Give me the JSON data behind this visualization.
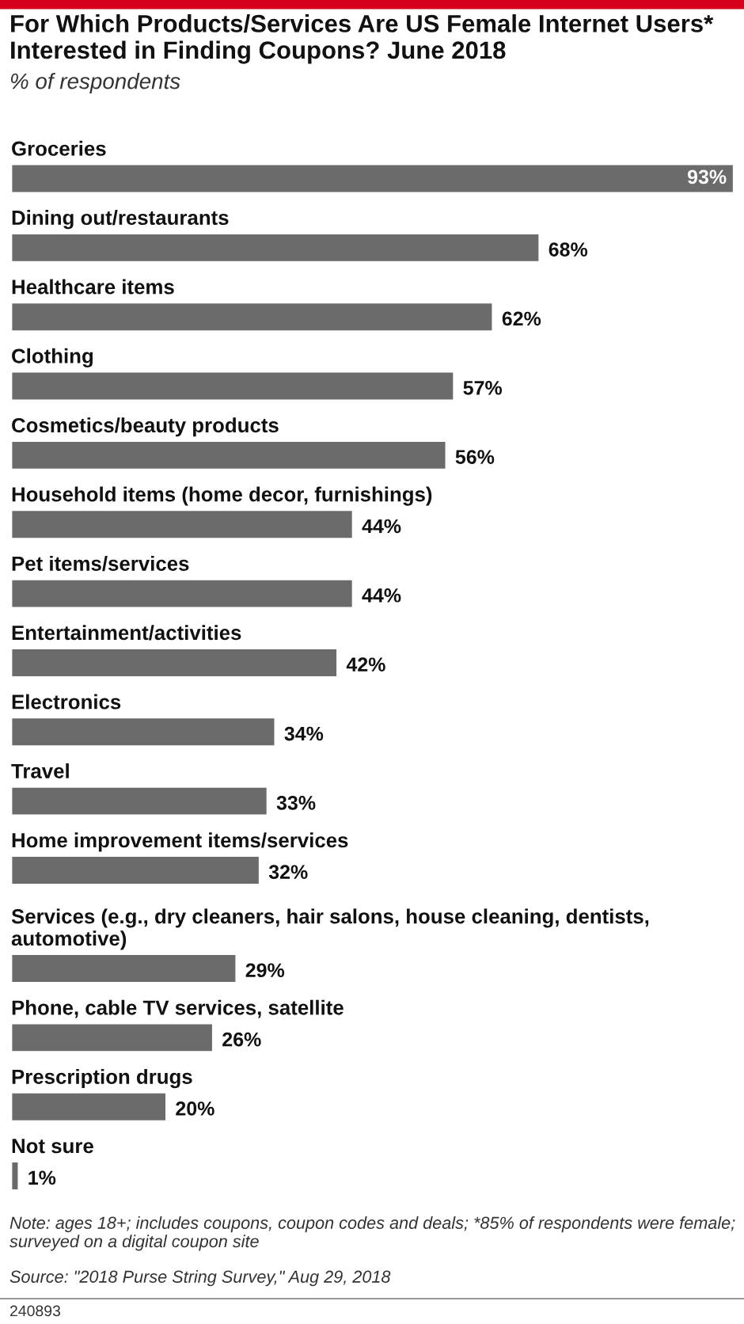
{
  "chart_data": {
    "type": "bar",
    "orientation": "horizontal",
    "title": "For Which Products/Services Are US Female Internet Users* Interested in Finding Coupons? June 2018",
    "subtitle": "% of respondents",
    "categories": [
      "Groceries",
      "Dining out/restaurants",
      "Healthcare items",
      "Clothing",
      "Cosmetics/beauty products",
      "Household items (home decor, furnishings)",
      "Pet items/services",
      "Entertainment/activities",
      "Electronics",
      "Travel",
      "Home improvement items/services",
      "Services (e.g., dry cleaners, hair salons, house cleaning, dentists, automotive)",
      "Phone, cable TV services, satellite",
      "Prescription drugs",
      "Not sure"
    ],
    "values": [
      93,
      68,
      62,
      57,
      56,
      44,
      44,
      42,
      34,
      33,
      32,
      29,
      26,
      20,
      1
    ],
    "value_labels": [
      "93%",
      "68%",
      "62%",
      "57%",
      "56%",
      "44%",
      "44%",
      "42%",
      "34%",
      "33%",
      "32%",
      "29%",
      "26%",
      "20%",
      "1%"
    ],
    "color": "#6b6b6b",
    "annotations": [
      "Note: ages 18+; includes coupons, coupon codes and deals; *85% of respondents were female; surveyed on a digital coupon site",
      "Source: \"2018 Purse String Survey,\" Aug 29, 2018",
      "240893"
    ]
  }
}
